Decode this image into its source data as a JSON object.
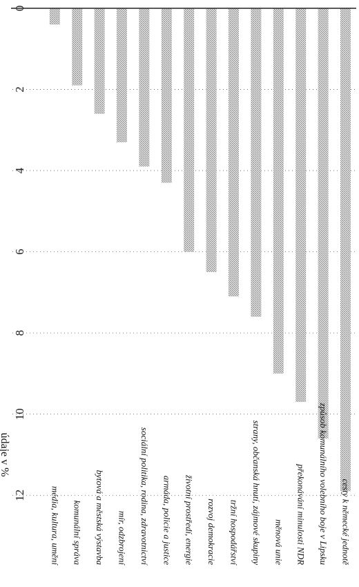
{
  "chart_data": {
    "type": "bar",
    "orientation": "horizontal",
    "categories": [
      "cesty k německé jednotě",
      "způsob komunálního volebního boje v Lipsku",
      "překonávání minulosti NDR",
      "měnová unie",
      "strany, občanská hnutí, zájmové skupiny",
      "tržní hospodářství",
      "rozvoj demokracie",
      "životní prostředí, energie",
      "armáda, policie a justice",
      "sociální politika, rodina, zdravotnictví",
      "mír, odzbrojení",
      "bytová a městská výstavba",
      "komunální správa",
      "média, kultura, umění"
    ],
    "values": [
      11.9,
      10.6,
      9.7,
      9.0,
      7.6,
      7.1,
      6.5,
      6.0,
      4.3,
      3.9,
      3.3,
      2.6,
      1.9,
      0.4
    ],
    "xlabel": "údaje v %",
    "xticks": [
      "0",
      "2",
      "4",
      "6",
      "8",
      "10",
      "12"
    ],
    "xlim": [
      0,
      13
    ],
    "grid": "dotted vertical",
    "bar_color": "#c4c4c4"
  }
}
